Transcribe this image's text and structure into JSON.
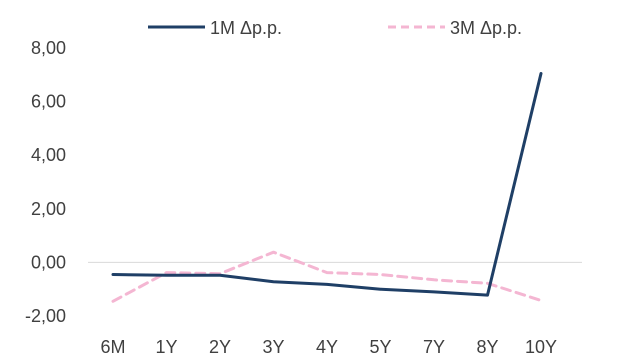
{
  "chart_data": {
    "type": "line",
    "categories": [
      "6M",
      "1Y",
      "2Y",
      "3Y",
      "4Y",
      "5Y",
      "7Y",
      "8Y",
      "10Y"
    ],
    "series": [
      {
        "name": "1M Δp.p.",
        "color": "#1f3f66",
        "dash": "solid",
        "values": [
          -0.45,
          -0.48,
          -0.48,
          -0.72,
          -0.82,
          -1.0,
          -1.1,
          -1.22,
          7.05
        ]
      },
      {
        "name": "3M Δp.p.",
        "color": "#f4b6d2",
        "dash": "dashed",
        "values": [
          -1.45,
          -0.38,
          -0.42,
          0.38,
          -0.38,
          -0.45,
          -0.65,
          -0.78,
          -1.42
        ]
      }
    ],
    "yticks": [
      "8,00",
      "6,00",
      "4,00",
      "2,00",
      "0,00",
      "-2,00"
    ],
    "ytick_values": [
      8,
      6,
      4,
      2,
      0,
      -2
    ],
    "ylim": [
      -2,
      8
    ],
    "grid": false,
    "zero_line": true,
    "legend_position": "top-center"
  }
}
